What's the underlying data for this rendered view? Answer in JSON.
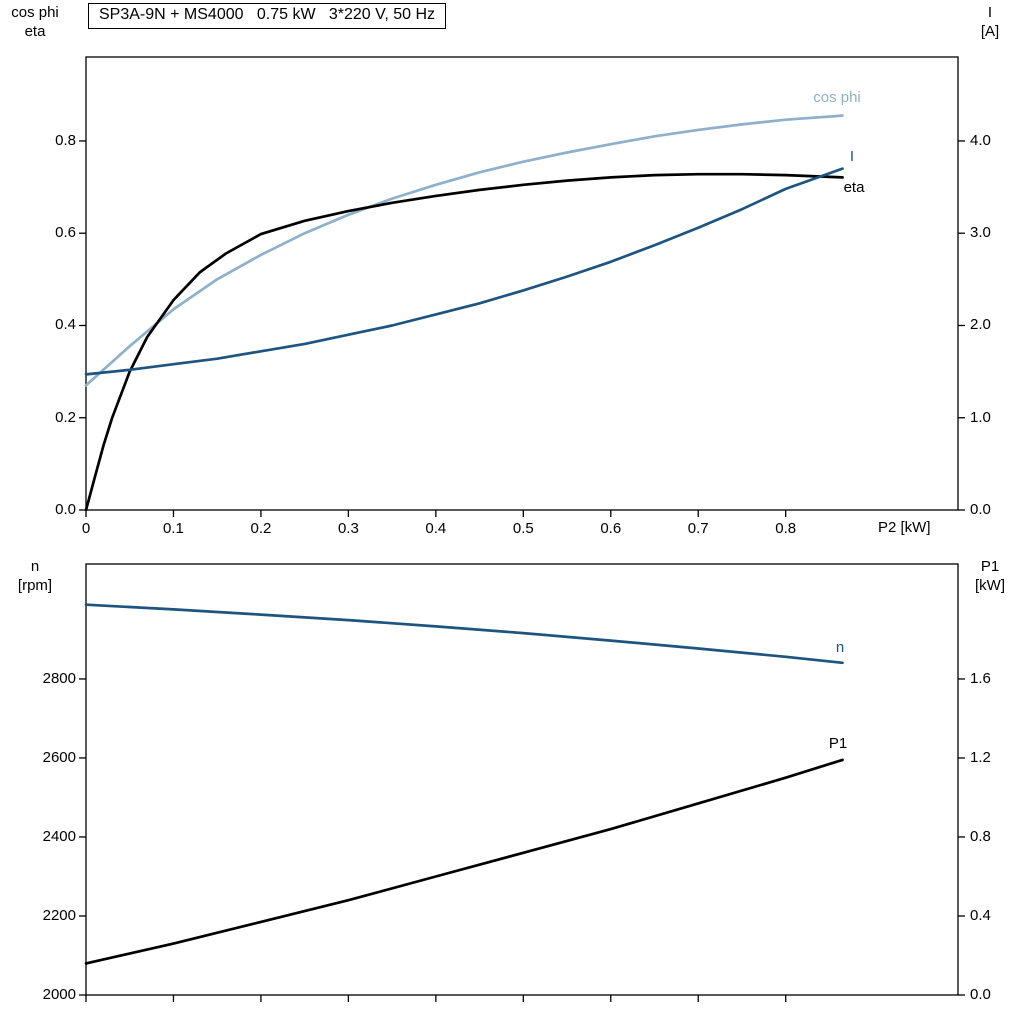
{
  "colors": {
    "light_blue": "#8fb0ca",
    "dark_blue": "#1d5480",
    "black": "#000000",
    "axis": "#000000",
    "background": "#ffffff"
  },
  "chart_data": [
    {
      "type": "line",
      "title": "SP3A-9N + MS4000   0.75 kW   3*220 V, 50 Hz",
      "xlabel": "P2 [kW]",
      "ylabel_left_lines": [
        "cos phi",
        "eta"
      ],
      "ylabel_right_lines": [
        "I",
        "[A]"
      ],
      "xlim": [
        0,
        0.997
      ],
      "ylim_left": [
        0,
        0.982
      ],
      "ylim_right": [
        0,
        4.91
      ],
      "grid": false,
      "legend": "inline-labels",
      "x_ticks": [
        0,
        0.1,
        0.2,
        0.3,
        0.4,
        0.5,
        0.6,
        0.7,
        0.8
      ],
      "x_tick_labels": [
        "0",
        "0.1",
        "0.2",
        "0.3",
        "0.4",
        "0.5",
        "0.6",
        "0.7",
        "0.8"
      ],
      "y_ticks_left": [
        0,
        0.2,
        0.4,
        0.6,
        0.8
      ],
      "y_tick_labels_left": [
        "0.0",
        "0.2",
        "0.4",
        "0.6",
        "0.8"
      ],
      "y_ticks_right": [
        0,
        1,
        2,
        3,
        4
      ],
      "y_tick_labels_right": [
        "0.0",
        "1.0",
        "2.0",
        "3.0",
        "4.0"
      ],
      "series": [
        {
          "name": "cos phi",
          "axis": "left",
          "color_key": "light_blue",
          "x": [
            0,
            0.05,
            0.1,
            0.15,
            0.2,
            0.25,
            0.3,
            0.35,
            0.4,
            0.45,
            0.5,
            0.55,
            0.6,
            0.65,
            0.7,
            0.75,
            0.8,
            0.865
          ],
          "y": [
            0.27,
            0.355,
            0.435,
            0.5,
            0.553,
            0.6,
            0.64,
            0.675,
            0.705,
            0.732,
            0.755,
            0.775,
            0.793,
            0.81,
            0.824,
            0.836,
            0.846,
            0.855
          ]
        },
        {
          "name": "eta",
          "axis": "left",
          "color_key": "black",
          "x": [
            0,
            0.01,
            0.02,
            0.03,
            0.05,
            0.07,
            0.1,
            0.13,
            0.16,
            0.2,
            0.25,
            0.3,
            0.35,
            0.4,
            0.45,
            0.5,
            0.55,
            0.6,
            0.65,
            0.7,
            0.75,
            0.8,
            0.865
          ],
          "y": [
            0,
            0.07,
            0.14,
            0.2,
            0.3,
            0.375,
            0.455,
            0.515,
            0.556,
            0.598,
            0.627,
            0.648,
            0.666,
            0.681,
            0.694,
            0.705,
            0.714,
            0.721,
            0.726,
            0.728,
            0.728,
            0.726,
            0.721
          ]
        },
        {
          "name": "I",
          "axis": "right",
          "color_key": "dark_blue",
          "x": [
            0,
            0.05,
            0.1,
            0.15,
            0.2,
            0.25,
            0.3,
            0.35,
            0.4,
            0.45,
            0.5,
            0.55,
            0.6,
            0.65,
            0.7,
            0.75,
            0.8,
            0.865
          ],
          "y": [
            1.47,
            1.52,
            1.58,
            1.64,
            1.72,
            1.8,
            1.9,
            2.0,
            2.12,
            2.24,
            2.38,
            2.53,
            2.69,
            2.87,
            3.06,
            3.26,
            3.48,
            3.7
          ]
        }
      ]
    },
    {
      "type": "line",
      "title": "",
      "xlabel": "",
      "ylabel_left_lines": [
        "n",
        "[rpm]"
      ],
      "ylabel_right_lines": [
        "P1",
        "[kW]"
      ],
      "xlim": [
        0,
        0.997
      ],
      "ylim_left": [
        2000,
        3091
      ],
      "ylim_right": [
        0,
        2.182
      ],
      "grid": false,
      "legend": "inline-labels",
      "x_ticks": [
        0,
        0.1,
        0.2,
        0.3,
        0.4,
        0.5,
        0.6,
        0.7,
        0.8
      ],
      "x_tick_labels": [],
      "y_ticks_left": [
        2000,
        2200,
        2400,
        2600,
        2800
      ],
      "y_tick_labels_left": [
        "2000",
        "2200",
        "2400",
        "2600",
        "2800"
      ],
      "y_ticks_right": [
        0,
        0.4,
        0.8,
        1.2,
        1.6
      ],
      "y_tick_labels_right": [
        "0.0",
        "0.4",
        "0.8",
        "1.2",
        "1.6"
      ],
      "series": [
        {
          "name": "n",
          "axis": "left",
          "color_key": "dark_blue",
          "x": [
            0,
            0.1,
            0.2,
            0.3,
            0.4,
            0.5,
            0.6,
            0.7,
            0.8,
            0.865
          ],
          "y": [
            2988,
            2976,
            2963,
            2949,
            2933,
            2916,
            2897,
            2877,
            2856,
            2841
          ]
        },
        {
          "name": "P1",
          "axis": "right",
          "color_key": "black",
          "x": [
            0,
            0.1,
            0.2,
            0.3,
            0.4,
            0.5,
            0.6,
            0.7,
            0.8,
            0.865
          ],
          "y": [
            0.16,
            0.26,
            0.37,
            0.48,
            0.6,
            0.72,
            0.84,
            0.97,
            1.1,
            1.19
          ]
        }
      ]
    }
  ]
}
